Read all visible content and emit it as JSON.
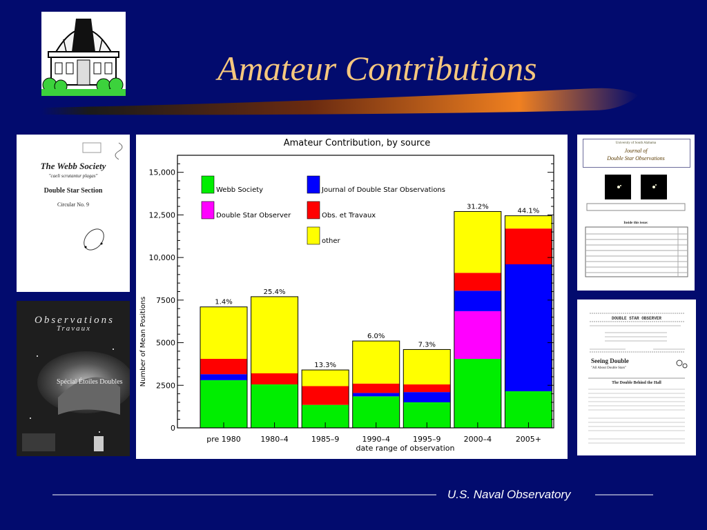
{
  "slide": {
    "title": "Amateur Contributions",
    "footer": "U.S. Naval Observatory",
    "colors": {
      "background": "#020b6e",
      "title": "#f5c77e"
    }
  },
  "logo": {
    "icon": "observatory-building-icon"
  },
  "thumbnails": {
    "webb": {
      "publisher": "The Webb Society",
      "motto": "\"caeli scrutantur plagas\"",
      "section": "Double Star Section",
      "circular": "Circular No. 9"
    },
    "ot": {
      "title_1": "Observations",
      "title_2": "Travaux",
      "subtitle": "Spécial Étoiles Doubles"
    },
    "jdso": {
      "university": "University of South Alabama",
      "title_1": "Journal of",
      "title_2": "Double Star Observations",
      "contents_heading": "Inside this issue:"
    },
    "dso": {
      "masthead": "DOUBLE STAR OBSERVER",
      "article_1": "Seeing Double",
      "article_1_sub": "\"All About Double Stars\"",
      "article_2": "The Double Behind the Hall"
    }
  },
  "chart_data": {
    "type": "bar",
    "stacked": true,
    "title": "Amateur Contribution, by source",
    "xlabel": "date range of observation",
    "ylabel": "Number of Mean Positions",
    "ylim": [
      0,
      16000
    ],
    "yticks": [
      0,
      2500,
      5000,
      7500,
      10000,
      12500,
      15000
    ],
    "ytick_labels": [
      "0",
      "2500",
      "5000",
      "7500",
      "10,000",
      "12,500",
      "15,000"
    ],
    "categories": [
      "pre 1980",
      "1980–4",
      "1985–9",
      "1990–4",
      "1995–9",
      "2000–4",
      "2005+"
    ],
    "percent_labels": [
      "1.4%",
      "25.4%",
      "13.3%",
      "6.0%",
      "7.3%",
      "31.2%",
      "44.1%"
    ],
    "legend_position": "top-left",
    "series": [
      {
        "name": "Webb Society",
        "color": "#00ee00",
        "values": [
          2800,
          2550,
          1350,
          1850,
          1500,
          4050,
          2150
        ]
      },
      {
        "name": "Journal of Double Star Observations",
        "color": "#0000ff",
        "values": [
          0,
          0,
          0,
          0,
          600,
          0,
          7450
        ]
      },
      {
        "name": "Double Star Observer",
        "color": "#ff00ff",
        "values": [
          0,
          0,
          0,
          0,
          0,
          2800,
          0
        ]
      },
      {
        "name": "Journal of Double Star Observations",
        "color": "#0000ff",
        "values": [
          350,
          0,
          0,
          200,
          0,
          1200,
          0
        ]
      },
      {
        "name": "Obs. et Travaux",
        "color": "#ff0000",
        "values": [
          900,
          650,
          1100,
          550,
          450,
          1050,
          2100
        ]
      },
      {
        "name": "other",
        "color": "#ffff00",
        "values": [
          3050,
          4500,
          950,
          2500,
          2050,
          3600,
          750
        ]
      }
    ],
    "legend": [
      {
        "name": "Webb Society",
        "color": "#00ee00"
      },
      {
        "name": "Journal of Double Star Observations",
        "color": "#0000ff"
      },
      {
        "name": "Double Star Observer",
        "color": "#ff00ff"
      },
      {
        "name": "Obs. et Travaux",
        "color": "#ff0000"
      },
      {
        "name": "other",
        "color": "#ffff00"
      }
    ]
  }
}
